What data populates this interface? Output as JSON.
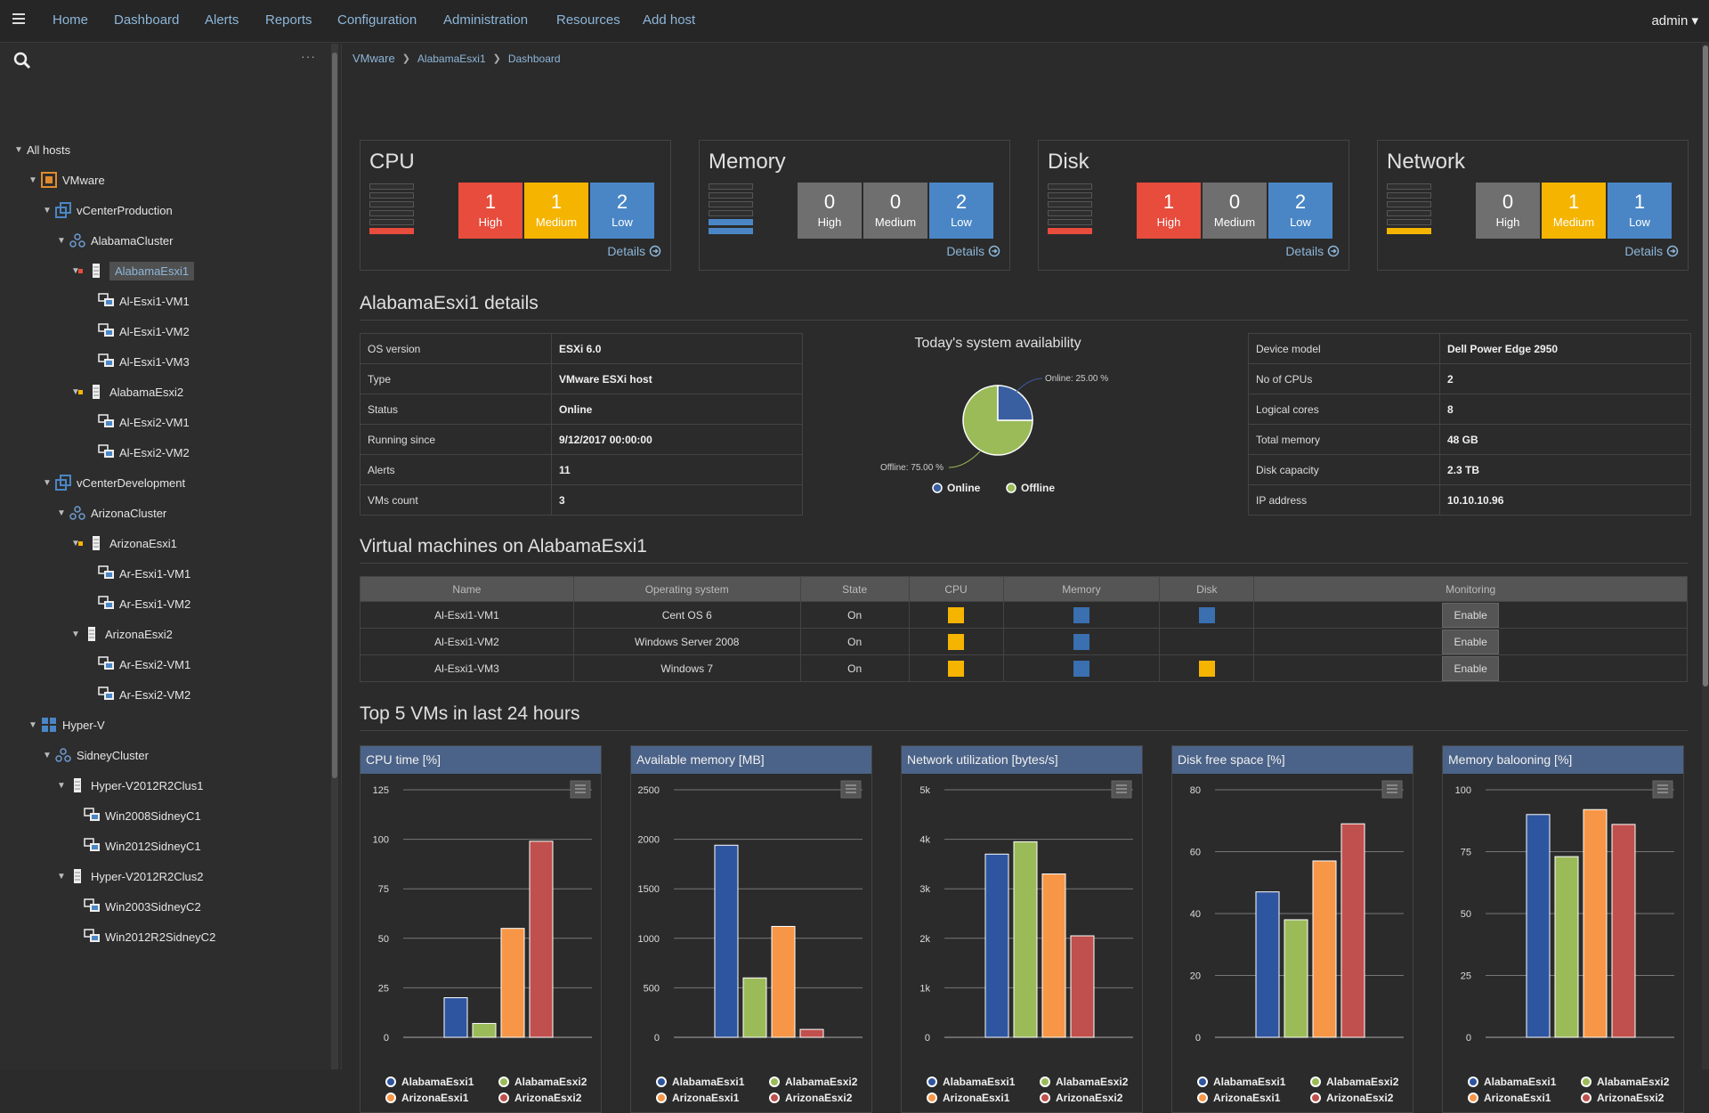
{
  "nav": {
    "items": [
      "Home",
      "Dashboard",
      "Alerts",
      "Reports",
      "Configuration",
      "Administration",
      "Resources",
      "Add host"
    ],
    "user": "admin ▾"
  },
  "sidebar": {
    "more": "···",
    "tree": [
      {
        "label": "All hosts",
        "level": 0,
        "icon": "none",
        "toggle": true
      },
      {
        "label": "VMware",
        "level": 1,
        "icon": "vmware",
        "toggle": true
      },
      {
        "label": "vCenterProduction",
        "level": 2,
        "icon": "vcenter",
        "toggle": true
      },
      {
        "label": "AlabamaCluster",
        "level": 3,
        "icon": "cluster",
        "toggle": true
      },
      {
        "label": "AlabamaEsxi1",
        "level": 4,
        "icon": "server",
        "toggle": true,
        "status": "#e74c3c",
        "selected": true
      },
      {
        "label": "Al-Esxi1-VM1",
        "level": 5,
        "icon": "vm"
      },
      {
        "label": "Al-Esxi1-VM2",
        "level": 5,
        "icon": "vm"
      },
      {
        "label": "Al-Esxi1-VM3",
        "level": 5,
        "icon": "vm"
      },
      {
        "label": "AlabamaEsxi2",
        "level": 4,
        "icon": "server",
        "toggle": true,
        "status": "#f5b400"
      },
      {
        "label": "Al-Esxi2-VM1",
        "level": 5,
        "icon": "vm"
      },
      {
        "label": "Al-Esxi2-VM2",
        "level": 5,
        "icon": "vm"
      },
      {
        "label": "vCenterDevelopment",
        "level": 2,
        "icon": "vcenter",
        "toggle": true
      },
      {
        "label": "ArizonaCluster",
        "level": 3,
        "icon": "cluster",
        "toggle": true
      },
      {
        "label": "ArizonaEsxi1",
        "level": 4,
        "icon": "server",
        "toggle": true,
        "status": "#f5b400"
      },
      {
        "label": "Ar-Esxi1-VM1",
        "level": 5,
        "icon": "vm"
      },
      {
        "label": "Ar-Esxi1-VM2",
        "level": 5,
        "icon": "vm"
      },
      {
        "label": "ArizonaEsxi2",
        "level": 4,
        "icon": "server",
        "toggle": true
      },
      {
        "label": "Ar-Esxi2-VM1",
        "level": 5,
        "icon": "vm"
      },
      {
        "label": "Ar-Esxi2-VM2",
        "level": 5,
        "icon": "vm"
      },
      {
        "label": "Hyper-V",
        "level": 1,
        "icon": "hyperv",
        "toggle": true
      },
      {
        "label": "SidneyCluster",
        "level": 2,
        "icon": "cluster",
        "toggle": true
      },
      {
        "label": "Hyper-V2012R2Clus1",
        "level": 3,
        "icon": "server",
        "toggle": true
      },
      {
        "label": "Win2008SidneyC1",
        "level": 4,
        "icon": "vm"
      },
      {
        "label": "Win2012SidneyC1",
        "level": 4,
        "icon": "vm"
      },
      {
        "label": "Hyper-V2012R2Clus2",
        "level": 3,
        "icon": "server",
        "toggle": true
      },
      {
        "label": "Win2003SidneyC2",
        "level": 4,
        "icon": "vm"
      },
      {
        "label": "Win2012R2SidneyC2",
        "level": 4,
        "icon": "vm"
      }
    ]
  },
  "breadcrumb": {
    "root": "VMware",
    "host": "AlabamaEsxi1",
    "page": "Dashboard"
  },
  "summary": [
    {
      "title": "CPU",
      "high": "1",
      "medium": "1",
      "low": "2",
      "meter_color": "#e74c3c",
      "meter_level": 1,
      "high_color": "#e74c3c",
      "medium_color": "#f5b400",
      "low_color": "#4a86c5"
    },
    {
      "title": "Memory",
      "high": "0",
      "medium": "0",
      "low": "2",
      "meter_color": "#4a86c5",
      "meter_level": 2,
      "high_color": "#6f6f6f",
      "medium_color": "#6f6f6f",
      "low_color": "#4a86c5"
    },
    {
      "title": "Disk",
      "high": "1",
      "medium": "0",
      "low": "2",
      "meter_color": "#e74c3c",
      "meter_level": 1,
      "high_color": "#e74c3c",
      "medium_color": "#6f6f6f",
      "low_color": "#4a86c5"
    },
    {
      "title": "Network",
      "high": "0",
      "medium": "1",
      "low": "1",
      "meter_color": "#f5b400",
      "meter_level": 1,
      "high_color": "#6f6f6f",
      "medium_color": "#f5b400",
      "low_color": "#4a86c5"
    }
  ],
  "labels": {
    "high": "High",
    "medium": "Medium",
    "low": "Low",
    "details": "Details"
  },
  "details_title": "AlabamaEsxi1 details",
  "details_left": [
    {
      "k": "OS version",
      "v": "ESXi 6.0"
    },
    {
      "k": "Type",
      "v": "VMware ESXi host"
    },
    {
      "k": "Status",
      "v": "Online"
    },
    {
      "k": "Running since",
      "v": "9/12/2017 00:00:00"
    },
    {
      "k": "Alerts",
      "v": "11"
    },
    {
      "k": "VMs count",
      "v": "3"
    }
  ],
  "details_right": [
    {
      "k": "Device model",
      "v": "Dell Power Edge 2950"
    },
    {
      "k": "No of CPUs",
      "v": "2"
    },
    {
      "k": "Logical cores",
      "v": "8"
    },
    {
      "k": "Total memory",
      "v": "48 GB"
    },
    {
      "k": "Disk capacity",
      "v": "2.3 TB"
    },
    {
      "k": "IP address",
      "v": "10.10.10.96"
    }
  ],
  "availability": {
    "title": "Today's system availability",
    "online_label": "Online: 25.00 %",
    "offline_label": "Offline: 75.00 %",
    "legend_online": "Online",
    "legend_offline": "Offline",
    "online_pct": 25,
    "offline_pct": 75,
    "online_color": "#3a5fa0",
    "offline_color": "#9bbb59"
  },
  "vm_title": "Virtual machines on AlabamaEsxi1",
  "vm_table": {
    "headers": [
      "Name",
      "Operating system",
      "State",
      "CPU",
      "Memory",
      "Disk",
      "Monitoring"
    ],
    "rows": [
      {
        "name": "Al-Esxi1-VM1",
        "os": "Cent OS 6",
        "state": "On",
        "cpu": "#f5b400",
        "mem": "#3a6fb0",
        "disk": "#3a6fb0",
        "btn": "Enable"
      },
      {
        "name": "Al-Esxi1-VM2",
        "os": "Windows Server 2008",
        "state": "On",
        "cpu": "#f5b400",
        "mem": "#3a6fb0",
        "disk": "",
        "btn": "Enable"
      },
      {
        "name": "Al-Esxi1-VM3",
        "os": "Windows 7",
        "state": "On",
        "cpu": "#f5b400",
        "mem": "#3a6fb0",
        "disk": "#f5b400",
        "btn": "Enable"
      }
    ]
  },
  "top_title": "Top 5 VMs in last 24 hours",
  "legend_names": [
    "AlabamaEsxi1",
    "AlabamaEsxi2",
    "ArizonaEsxi1",
    "ArizonaEsxi2"
  ],
  "series_colors": [
    "#2e55a0",
    "#9bbb59",
    "#f79646",
    "#c0504d"
  ],
  "chart_data": [
    {
      "type": "bar",
      "title": "CPU time [%]",
      "categories": [
        "AlabamaEsxi1",
        "AlabamaEsxi2",
        "ArizonaEsxi1",
        "ArizonaEsxi2"
      ],
      "values": [
        20,
        7,
        55,
        99
      ],
      "ylim": [
        0,
        125
      ],
      "yticks": [
        0,
        25,
        50,
        75,
        100,
        125
      ],
      "yticklabels": [
        "0",
        "25",
        "50",
        "75",
        "100",
        "125"
      ],
      "grid": true,
      "legend": "bottom"
    },
    {
      "type": "bar",
      "title": "Available memory [MB]",
      "categories": [
        "AlabamaEsxi1",
        "AlabamaEsxi2",
        "ArizonaEsxi1",
        "ArizonaEsxi2"
      ],
      "values": [
        1940,
        600,
        1120,
        80
      ],
      "ylim": [
        0,
        2500
      ],
      "yticks": [
        0,
        500,
        1000,
        1500,
        2000,
        2500
      ],
      "yticklabels": [
        "0",
        "500",
        "1000",
        "1500",
        "2000",
        "2500"
      ],
      "grid": true,
      "legend": "bottom"
    },
    {
      "type": "bar",
      "title": "Network utilization [bytes/s]",
      "categories": [
        "AlabamaEsxi1",
        "AlabamaEsxi2",
        "ArizonaEsxi1",
        "ArizonaEsxi2"
      ],
      "values": [
        3700,
        3950,
        3300,
        2050
      ],
      "ylim": [
        0,
        5000
      ],
      "yticks": [
        0,
        1000,
        2000,
        3000,
        4000,
        5000
      ],
      "yticklabels": [
        "0",
        "1k",
        "2k",
        "3k",
        "4k",
        "5k"
      ],
      "grid": true,
      "legend": "bottom"
    },
    {
      "type": "bar",
      "title": "Disk free space [%]",
      "categories": [
        "AlabamaEsxi1",
        "AlabamaEsxi2",
        "ArizonaEsxi1",
        "ArizonaEsxi2"
      ],
      "values": [
        47,
        38,
        57,
        69
      ],
      "ylim": [
        0,
        80
      ],
      "yticks": [
        0,
        20,
        40,
        60,
        80
      ],
      "yticklabels": [
        "0",
        "20",
        "40",
        "60",
        "80"
      ],
      "grid": true,
      "legend": "bottom"
    },
    {
      "type": "bar",
      "title": "Memory balooning [%]",
      "categories": [
        "AlabamaEsxi1",
        "AlabamaEsxi2",
        "ArizonaEsxi1",
        "ArizonaEsxi2"
      ],
      "values": [
        90,
        73,
        92,
        86
      ],
      "ylim": [
        0,
        100
      ],
      "yticks": [
        0,
        25,
        50,
        75,
        100
      ],
      "yticklabels": [
        "0",
        "25",
        "50",
        "75",
        "100"
      ],
      "grid": true,
      "legend": "bottom"
    }
  ]
}
